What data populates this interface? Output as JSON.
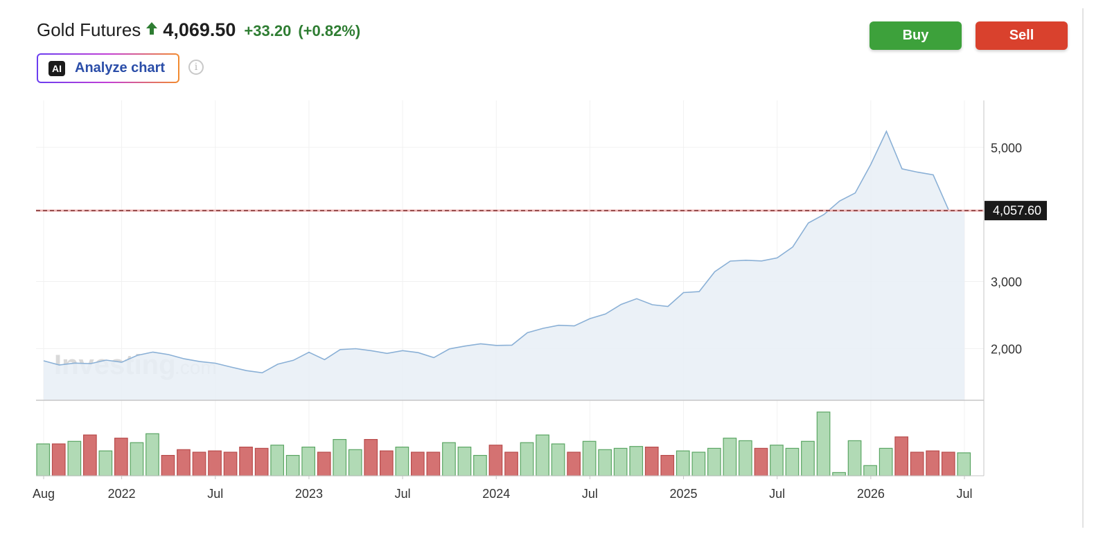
{
  "header": {
    "instrument": "Gold Futures",
    "price": "4,069.50",
    "change": "+33.20",
    "change_pct": "(+0.82%)",
    "direction_icon": "up-arrow-icon"
  },
  "analyze": {
    "badge": "AI",
    "label": "Analyze chart",
    "info_icon": "info-icon"
  },
  "actions": {
    "buy": "Buy",
    "sell": "Sell"
  },
  "colors": {
    "up": "#3da13b",
    "down": "#d9412d",
    "line": "#8ab0d6",
    "area": "#e7eef6",
    "vol_up_fill": "#b1dab5",
    "vol_up_stroke": "#5aa563",
    "vol_down_fill": "#d47272",
    "vol_down_stroke": "#b84b4b",
    "ref_line": "#7a2a2a"
  },
  "watermark": {
    "brand": "Investing",
    "suffix": ".com"
  },
  "chart_data": {
    "type": "area",
    "x": [
      "2021-08",
      "2021-09",
      "2021-10",
      "2021-11",
      "2021-12",
      "2022-01",
      "2022-02",
      "2022-03",
      "2022-04",
      "2022-05",
      "2022-06",
      "2022-07",
      "2022-08",
      "2022-09",
      "2022-10",
      "2022-11",
      "2022-12",
      "2023-01",
      "2023-02",
      "2023-03",
      "2023-04",
      "2023-05",
      "2023-06",
      "2023-07",
      "2023-08",
      "2023-09",
      "2023-10",
      "2023-11",
      "2023-12",
      "2024-01",
      "2024-02",
      "2024-03",
      "2024-04",
      "2024-05",
      "2024-06",
      "2024-07",
      "2024-08",
      "2024-09",
      "2024-10",
      "2024-11",
      "2024-12",
      "2025-01",
      "2025-02",
      "2025-03",
      "2025-04",
      "2025-05",
      "2025-06",
      "2025-07",
      "2025-08",
      "2025-09",
      "2025-10",
      "2025-11",
      "2025-12",
      "2026-01",
      "2026-02",
      "2026-03",
      "2026-04",
      "2026-05",
      "2026-06",
      "2026-07"
    ],
    "series": [
      {
        "values": [
          1818,
          1757,
          1784,
          1776,
          1829,
          1797,
          1900,
          1949,
          1911,
          1848,
          1807,
          1782,
          1726,
          1672,
          1640,
          1768,
          1826,
          1945,
          1836,
          1986,
          1999,
          1969,
          1929,
          1970,
          1940,
          1866,
          1996,
          2038,
          2072,
          2048,
          2052,
          2238,
          2303,
          2348,
          2339,
          2447,
          2516,
          2659,
          2744,
          2655,
          2629,
          2835,
          2850,
          3146,
          3305,
          3317,
          3307,
          3352,
          3516,
          3873,
          4000,
          4200,
          4320,
          4745,
          5240,
          4680,
          4630,
          4590,
          4060,
          4057.6
        ]
      }
    ],
    "volume": [
      {
        "v": 0.5,
        "up": true
      },
      {
        "v": 0.5,
        "up": false
      },
      {
        "v": 0.54,
        "up": true
      },
      {
        "v": 0.64,
        "up": false
      },
      {
        "v": 0.39,
        "up": true
      },
      {
        "v": 0.59,
        "up": false
      },
      {
        "v": 0.52,
        "up": true
      },
      {
        "v": 0.66,
        "up": true
      },
      {
        "v": 0.32,
        "up": false
      },
      {
        "v": 0.41,
        "up": false
      },
      {
        "v": 0.37,
        "up": false
      },
      {
        "v": 0.39,
        "up": false
      },
      {
        "v": 0.37,
        "up": false
      },
      {
        "v": 0.45,
        "up": false
      },
      {
        "v": 0.43,
        "up": false
      },
      {
        "v": 0.48,
        "up": true
      },
      {
        "v": 0.32,
        "up": true
      },
      {
        "v": 0.45,
        "up": true
      },
      {
        "v": 0.37,
        "up": false
      },
      {
        "v": 0.57,
        "up": true
      },
      {
        "v": 0.41,
        "up": true
      },
      {
        "v": 0.57,
        "up": false
      },
      {
        "v": 0.39,
        "up": false
      },
      {
        "v": 0.45,
        "up": true
      },
      {
        "v": 0.37,
        "up": false
      },
      {
        "v": 0.37,
        "up": false
      },
      {
        "v": 0.52,
        "up": true
      },
      {
        "v": 0.45,
        "up": true
      },
      {
        "v": 0.32,
        "up": true
      },
      {
        "v": 0.48,
        "up": false
      },
      {
        "v": 0.37,
        "up": false
      },
      {
        "v": 0.52,
        "up": true
      },
      {
        "v": 0.64,
        "up": true
      },
      {
        "v": 0.5,
        "up": true
      },
      {
        "v": 0.37,
        "up": false
      },
      {
        "v": 0.54,
        "up": true
      },
      {
        "v": 0.41,
        "up": true
      },
      {
        "v": 0.43,
        "up": true
      },
      {
        "v": 0.46,
        "up": true
      },
      {
        "v": 0.45,
        "up": false
      },
      {
        "v": 0.32,
        "up": false
      },
      {
        "v": 0.39,
        "up": true
      },
      {
        "v": 0.37,
        "up": true
      },
      {
        "v": 0.43,
        "up": true
      },
      {
        "v": 0.59,
        "up": true
      },
      {
        "v": 0.55,
        "up": true
      },
      {
        "v": 0.43,
        "up": false
      },
      {
        "v": 0.48,
        "up": true
      },
      {
        "v": 0.43,
        "up": true
      },
      {
        "v": 0.54,
        "up": true
      },
      {
        "v": 1.0,
        "up": true
      },
      {
        "v": 0.05,
        "up": true
      },
      {
        "v": 0.55,
        "up": true
      },
      {
        "v": 0.16,
        "up": true
      },
      {
        "v": 0.43,
        "up": true
      },
      {
        "v": 0.61,
        "up": false
      },
      {
        "v": 0.37,
        "up": false
      },
      {
        "v": 0.39,
        "up": false
      },
      {
        "v": 0.37,
        "up": false
      },
      {
        "v": 0.36,
        "up": true
      }
    ],
    "y_ticks": [
      "5,000",
      "3,000",
      "2,000"
    ],
    "y_tick_values": [
      5000,
      3000,
      2000
    ],
    "ylim": [
      1230,
      5700
    ],
    "x_ticks": [
      {
        "label": "Aug",
        "x": "2021-08"
      },
      {
        "label": "2022",
        "x": "2022-01"
      },
      {
        "label": "Jul",
        "x": "2022-07"
      },
      {
        "label": "2023",
        "x": "2023-01"
      },
      {
        "label": "Jul",
        "x": "2023-07"
      },
      {
        "label": "2024",
        "x": "2024-01"
      },
      {
        "label": "Jul",
        "x": "2024-07"
      },
      {
        "label": "2025",
        "x": "2025-01"
      },
      {
        "label": "Jul",
        "x": "2025-07"
      },
      {
        "label": "2026",
        "x": "2026-01"
      },
      {
        "label": "Jul",
        "x": "2026-07"
      }
    ],
    "reference_line": {
      "value": 4057.6,
      "label": "4,057.60"
    },
    "grid": true
  }
}
